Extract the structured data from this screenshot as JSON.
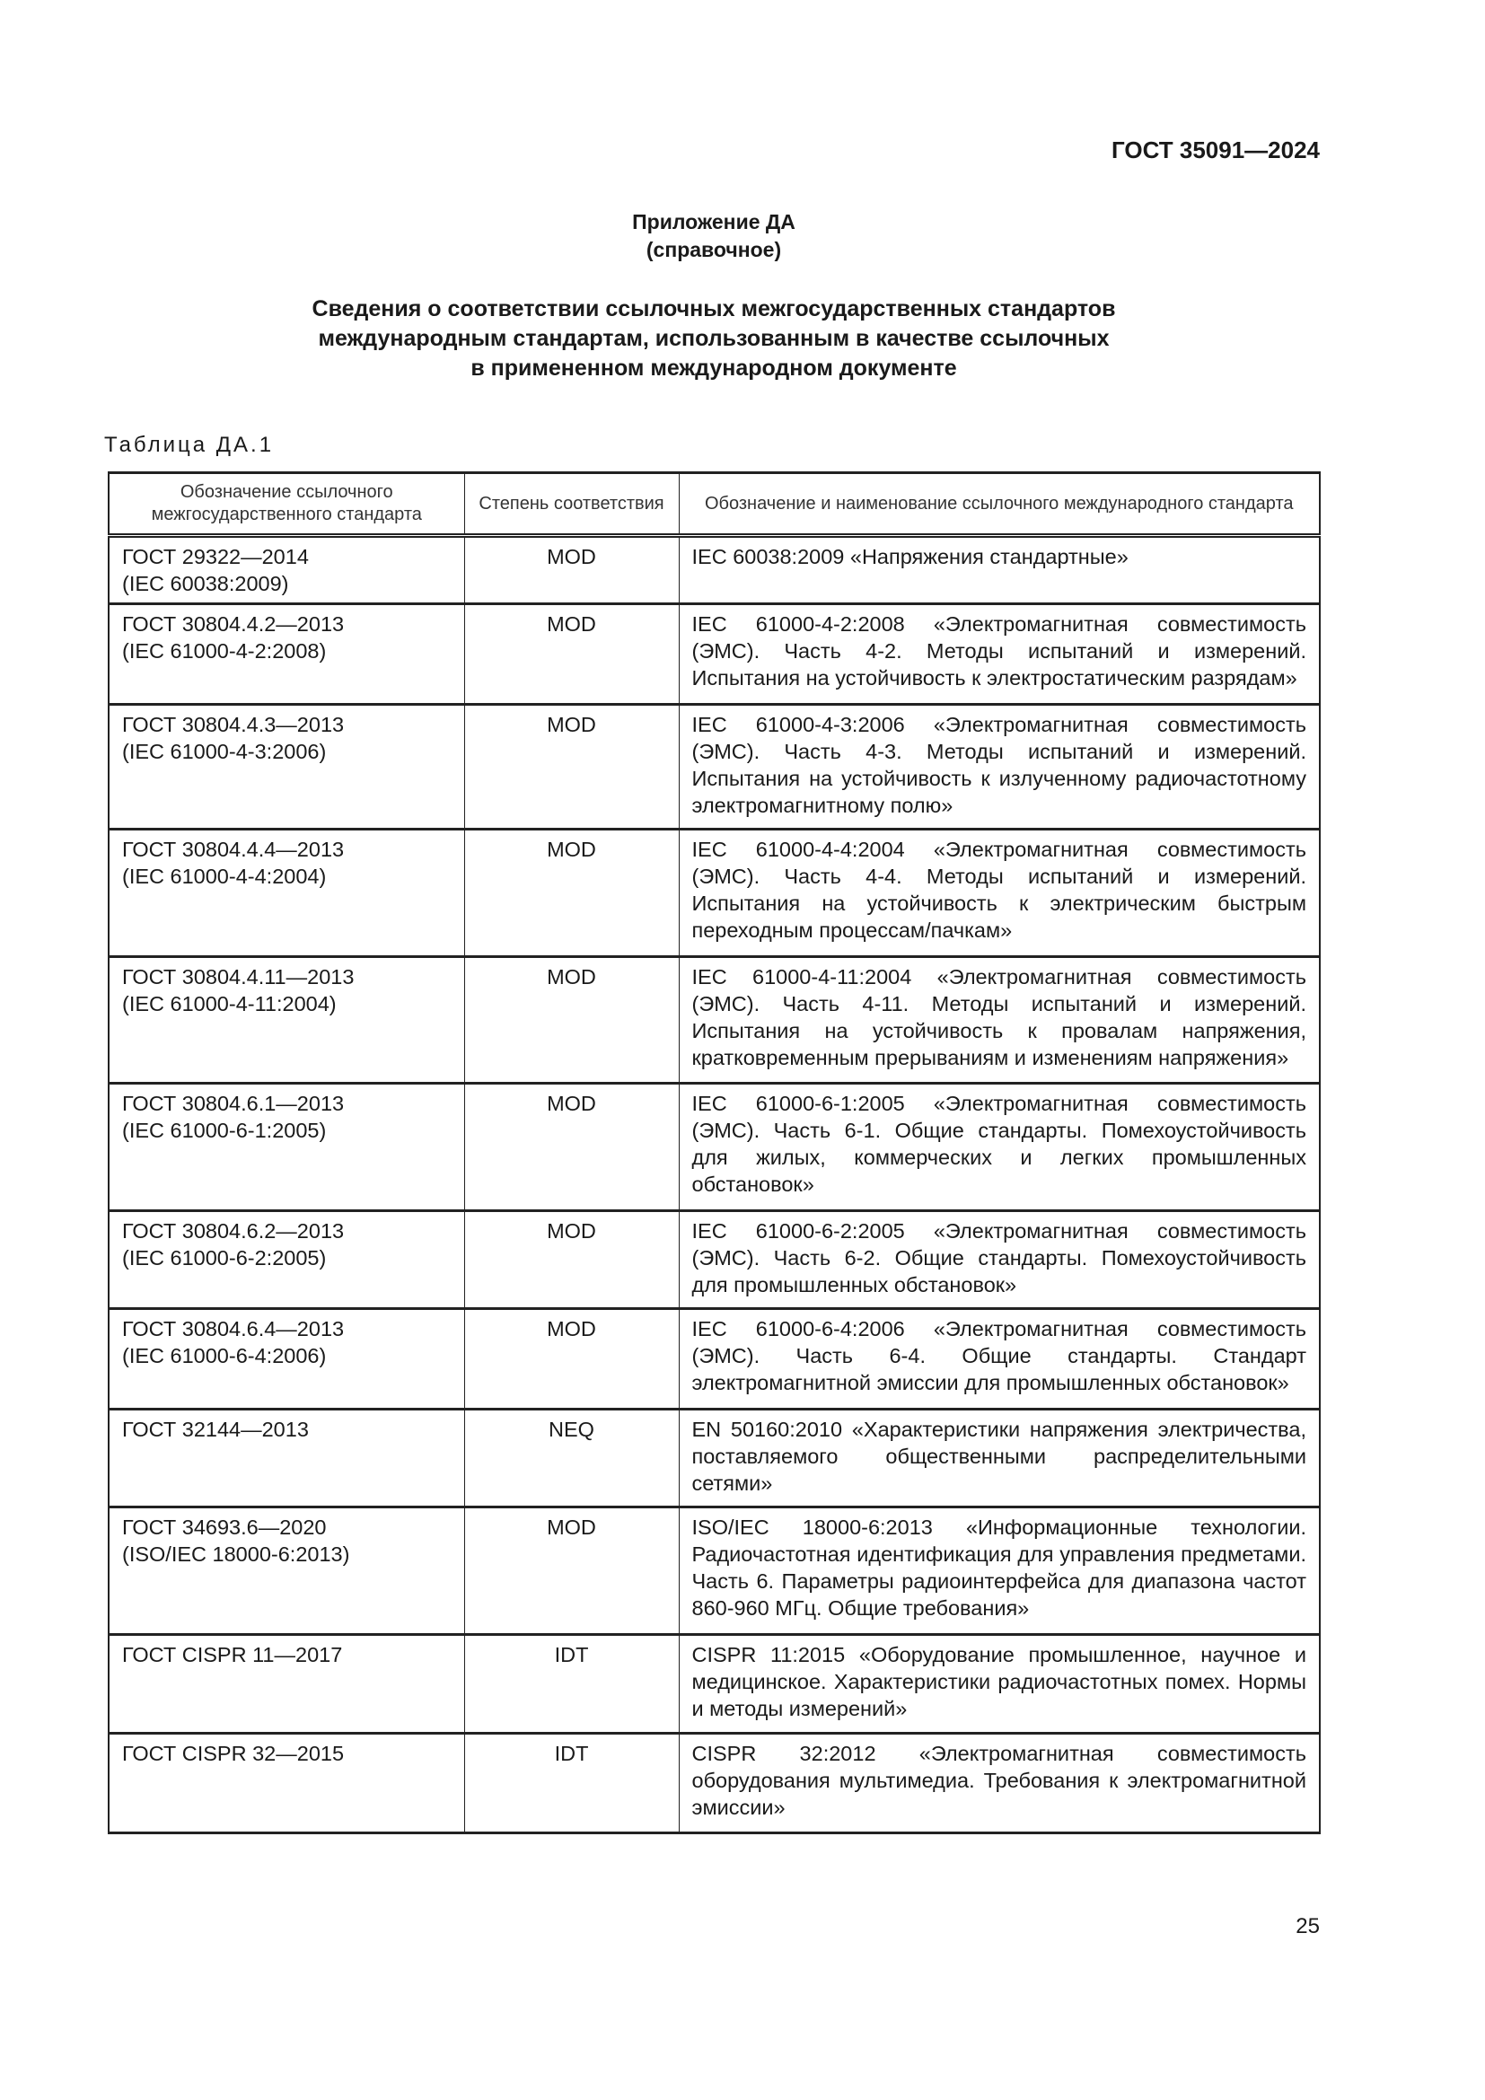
{
  "header": {
    "doc_code": "ГОСТ 35091—2024"
  },
  "appendix": {
    "title": "Приложение ДА",
    "subtitle": "(справочное)"
  },
  "heading": {
    "lines": [
      "Сведения о соответствии ссылочных межгосударственных стандартов",
      "международным стандартам, использованным в качестве ссылочных",
      "в примененном международном документе"
    ]
  },
  "table": {
    "label": "Таблица ДА.1",
    "columns": [
      "Обозначение ссылочного межгосударственного стандарта",
      "Степень соответствия",
      "Обозначение и наименование ссылочного международного стандарта"
    ],
    "rows": [
      {
        "gost": "ГОСТ 29322—2014",
        "ref": "(IEC 60038:2009)",
        "degree": "MOD",
        "intl": "IEC 60038:2009 «Напряжения стандартные»"
      },
      {
        "gost": "ГОСТ 30804.4.2—2013",
        "ref": "(IEC 61000-4-2:2008)",
        "degree": "MOD",
        "intl": "IEC 61000-4-2:2008 «Электромагнитная совместимость (ЭМС). Часть 4-2. Методы испытаний и измерений. Испытания на устойчивость к электростатическим разрядам»"
      },
      {
        "gost": "ГОСТ 30804.4.3—2013",
        "ref": "(IEC 61000-4-3:2006)",
        "degree": "MOD",
        "intl": "IEC 61000-4-3:2006 «Электромагнитная совместимость (ЭМС). Часть 4-3. Методы испытаний и измерений. Испытания на устойчивость к излученному радиочастотному электромагнитному полю»"
      },
      {
        "gost": "ГОСТ 30804.4.4—2013",
        "ref": "(IEC 61000-4-4:2004)",
        "degree": "MOD",
        "intl": "IEC 61000-4-4:2004 «Электромагнитная совместимость (ЭМС). Часть 4-4. Методы испытаний и измерений. Испытания на устойчивость к электрическим быстрым переходным процессам/пачкам»"
      },
      {
        "gost": "ГОСТ 30804.4.11—2013",
        "ref": "(IEC 61000-4-11:2004)",
        "degree": "MOD",
        "intl": "IEC 61000-4-11:2004 «Электромагнитная совместимость (ЭМС). Часть 4-11. Методы испытаний и измерений. Испытания на устойчивость к провалам напряжения, кратковременным прерываниям и изменениям напряжения»"
      },
      {
        "gost": "ГОСТ 30804.6.1—2013",
        "ref": "(IEC 61000-6-1:2005)",
        "degree": "MOD",
        "intl": "IEC 61000-6-1:2005 «Электромагнитная совместимость (ЭМС). Часть 6-1. Общие стандарты. Помехоустойчивость для жилых, коммерческих и легких промышленных обстановок»"
      },
      {
        "gost": "ГОСТ 30804.6.2—2013",
        "ref": "(IEC 61000-6-2:2005)",
        "degree": "MOD",
        "intl": "IEC 61000-6-2:2005 «Электромагнитная совместимость (ЭМС). Часть 6-2. Общие стандарты. Помехоустойчивость для промышленных обстановок»"
      },
      {
        "gost": "ГОСТ 30804.6.4—2013",
        "ref": "(IEC 61000-6-4:2006)",
        "degree": "MOD",
        "intl": "IEC 61000-6-4:2006 «Электромагнитная совместимость (ЭМС). Часть 6-4. Общие стандарты. Стандарт электромагнитной эмиссии для промышленных обстановок»"
      },
      {
        "gost": "ГОСТ 32144—2013",
        "ref": "",
        "degree": "NEQ",
        "intl": "EN 50160:2010 «Характеристики напряжения электричества, поставляемого общественными распределительными сетями»"
      },
      {
        "gost": "ГОСТ 34693.6—2020",
        "ref": "(ISO/IEC 18000-6:2013)",
        "degree": "MOD",
        "intl": "ISO/IEC 18000-6:2013 «Информационные технологии. Радиочастотная идентификация для управления предметами. Часть 6. Параметры радиоинтерфейса для диапазона частот 860-960 МГц. Общие требования»"
      },
      {
        "gost": "ГОСТ CISPR 11—2017",
        "ref": "",
        "degree": "IDT",
        "intl": "CISPR 11:2015 «Оборудование промышленное, научное и медицинское. Характеристики радиочастотных помех. Нормы и методы измерений»"
      },
      {
        "gost": "ГОСТ CISPR 32—2015",
        "ref": "",
        "degree": "IDT",
        "intl": "CISPR 32:2012 «Электромагнитная совместимость оборудования мультимедиа. Требования к электромагнитной эмиссии»"
      }
    ]
  },
  "footer": {
    "page_number": "25"
  }
}
